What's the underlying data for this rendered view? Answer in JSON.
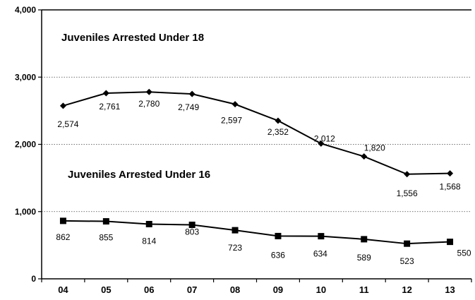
{
  "chart_data": {
    "type": "line",
    "title": "",
    "xlabel": "",
    "ylabel": "",
    "categories": [
      "04",
      "05",
      "06",
      "07",
      "08",
      "09",
      "10",
      "11",
      "12",
      "13"
    ],
    "ylim": [
      0,
      4000
    ],
    "yticks": [
      0,
      1000,
      2000,
      3000,
      4000
    ],
    "ytick_labels": [
      "0",
      "1,000",
      "2,000",
      "3,000",
      "4,000"
    ],
    "grid": "dotted horizontal at 1,000 / 2,000 / 3,000",
    "legend": "none",
    "series": [
      {
        "name": "Juveniles Arrested Under 18",
        "marker": "diamond",
        "color": "#000000",
        "values": [
          2574,
          2761,
          2780,
          2749,
          2597,
          2352,
          2012,
          1820,
          1556,
          1568
        ],
        "labels": [
          "2,574",
          "2,761",
          "2,780",
          "2,749",
          "2,597",
          "2,352",
          "2,012",
          "1,820",
          "1,556",
          "1,568"
        ]
      },
      {
        "name": "Juveniles Arrested Under 16",
        "marker": "square",
        "color": "#000000",
        "values": [
          862,
          855,
          814,
          803,
          723,
          636,
          634,
          589,
          523,
          550
        ],
        "labels": [
          "862",
          "855",
          "814",
          "803",
          "723",
          "636",
          "634",
          "589",
          "523",
          "550"
        ]
      }
    ]
  }
}
